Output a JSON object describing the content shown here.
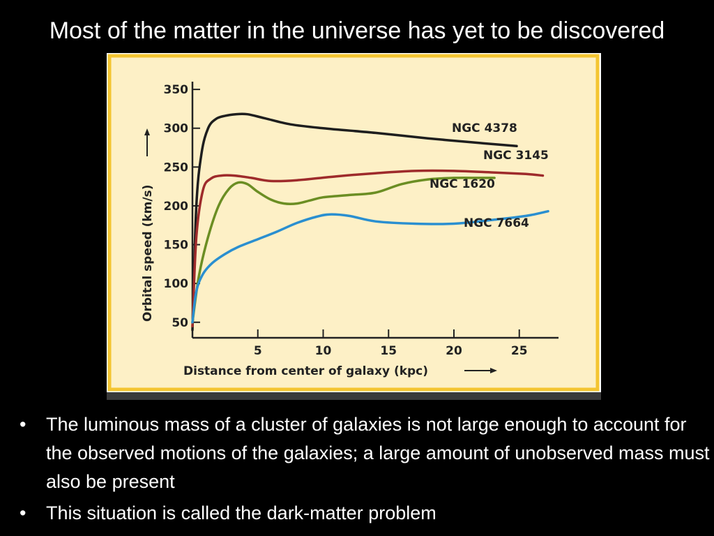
{
  "slide": {
    "title": "Most of the matter in the universe has yet to be discovered",
    "bullets": [
      "The luminous mass of a cluster of galaxies is not large enough to account for the observed motions of the galaxies; a large amount of unobserved mass must also be present",
      "This situation is called the dark-matter problem"
    ],
    "bullet_glyph": "•"
  },
  "chart_data": {
    "type": "line",
    "title": "",
    "xlabel": "Distance from center of galaxy (kpc)",
    "ylabel": "Orbital speed (km/s)",
    "xlim": [
      0,
      28
    ],
    "ylim": [
      30,
      360
    ],
    "x_ticks": [
      5,
      10,
      15,
      20,
      25
    ],
    "y_ticks": [
      50,
      100,
      150,
      200,
      250,
      300,
      350
    ],
    "grid": false,
    "colors": {
      "panel_bg": "#fdf0c6",
      "panel_border": "#f4c531",
      "axis": "#222222",
      "bottom_bar": "#3a3a3a"
    },
    "series": [
      {
        "name": "NGC 4378",
        "color": "#1e1e1e",
        "x": [
          0,
          0.3,
          0.7,
          1.2,
          1.8,
          2.5,
          3.3,
          4.2,
          5.5,
          7.5,
          10,
          14,
          18,
          22,
          24.8
        ],
        "y": [
          40,
          200,
          268,
          300,
          312,
          316,
          318,
          318,
          313,
          305,
          300,
          294,
          287,
          281,
          277
        ]
      },
      {
        "name": "NGC 3145",
        "color": "#9e2b2b",
        "x": [
          0,
          0.3,
          0.8,
          1.4,
          2.2,
          3.2,
          4.5,
          6,
          8,
          11,
          14,
          17,
          20,
          23,
          25.5,
          26.8
        ],
        "y": [
          45,
          160,
          220,
          235,
          239,
          239,
          236,
          232,
          233,
          238,
          242,
          245,
          245,
          243,
          241,
          239
        ]
      },
      {
        "name": "NGC 1620",
        "color": "#6b8e23",
        "x": [
          0,
          0.5,
          1.2,
          2,
          2.8,
          3.5,
          4.2,
          5,
          6,
          7,
          8,
          9,
          10,
          12,
          14,
          16,
          18,
          20,
          22,
          23.1
        ],
        "y": [
          50,
          110,
          160,
          200,
          222,
          230,
          228,
          218,
          208,
          203,
          203,
          207,
          211,
          214,
          217,
          228,
          234,
          236,
          236,
          236
        ]
      },
      {
        "name": "NGC 7664",
        "color": "#2a8fd0",
        "x": [
          0,
          0.3,
          0.8,
          1.5,
          2.5,
          3.5,
          5,
          6.5,
          8,
          9.5,
          10.5,
          12,
          14,
          17,
          20,
          23,
          25.5,
          27.2
        ],
        "y": [
          50,
          90,
          112,
          126,
          138,
          147,
          157,
          167,
          178,
          186,
          189,
          187,
          180,
          177,
          177,
          182,
          187,
          193
        ]
      }
    ]
  }
}
